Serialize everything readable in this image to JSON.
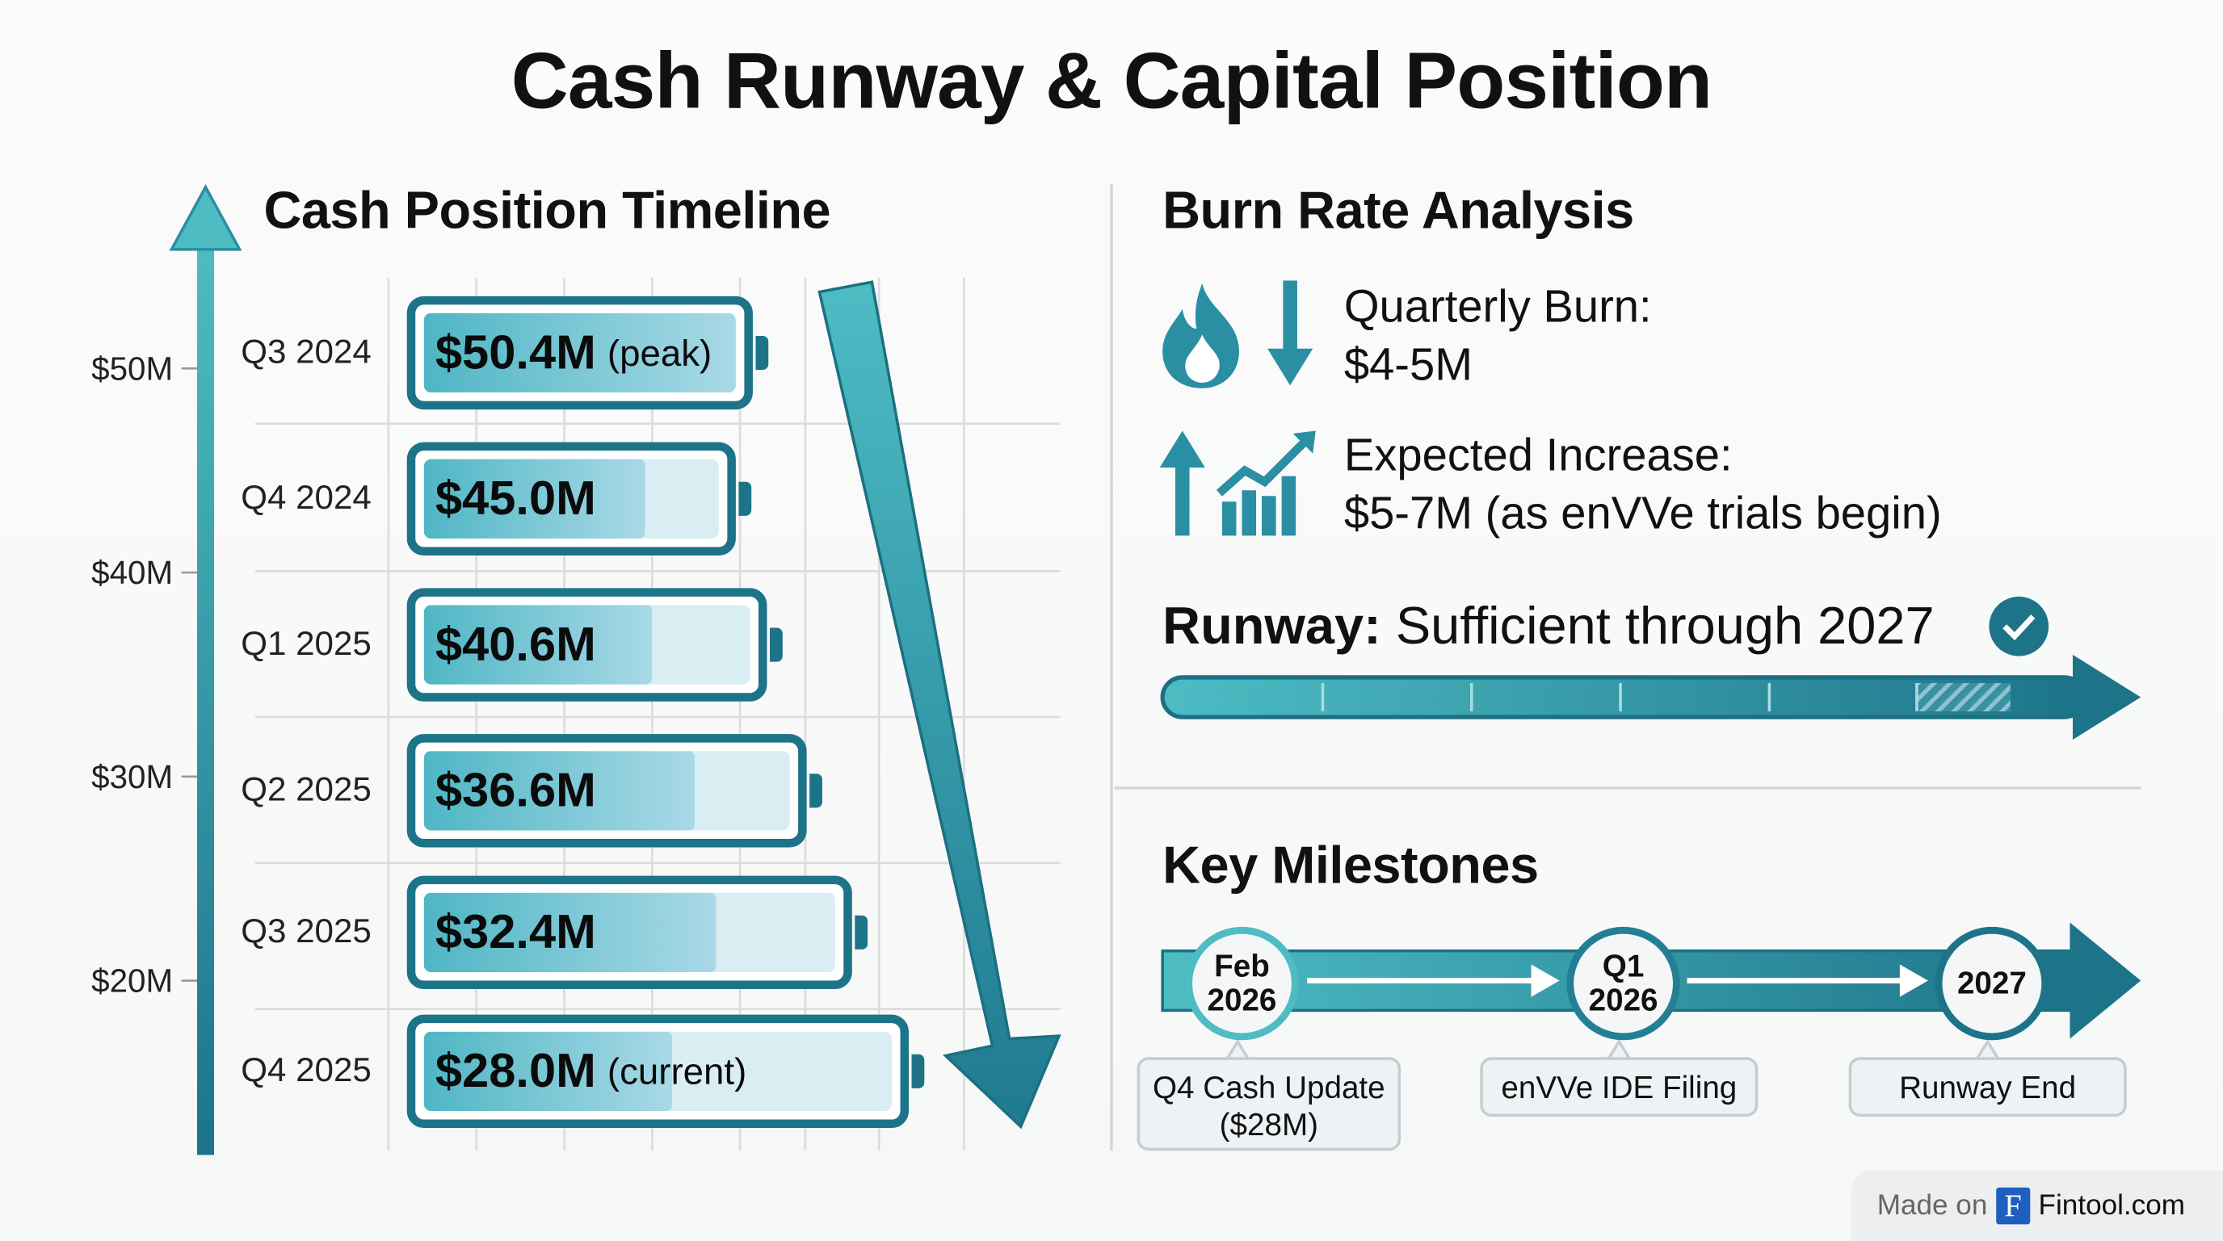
{
  "title": "Cash Runway & Capital Position",
  "colors": {
    "teal_light": "#4fb6c4",
    "teal_dark": "#1d7489",
    "text": "#111111"
  },
  "chart_data": {
    "type": "bar",
    "title": "Cash Position Timeline",
    "orientation": "horizontal",
    "y_ticks": [
      "$50M",
      "$40M",
      "$30M",
      "$20M"
    ],
    "grid": true,
    "categories": [
      "Q3 2024",
      "Q4 2024",
      "Q1 2025",
      "Q2 2025",
      "Q3 2025",
      "Q4 2025"
    ],
    "values": [
      50.4,
      45.0,
      40.6,
      36.6,
      32.4,
      28.0
    ],
    "labels": [
      "$50.4M",
      "$45.0M",
      "$40.6M",
      "$36.6M",
      "$32.4M",
      "$28.0M"
    ],
    "notes": [
      "(peak)",
      "",
      "",
      "",
      "",
      "(current)"
    ],
    "battery_fill_percent": [
      100,
      75,
      70,
      74,
      71,
      53
    ],
    "unit": "USD millions"
  },
  "burn": {
    "title": "Burn Rate Analysis",
    "quarterly_label": "Quarterly Burn:",
    "quarterly_value": "$4-5M",
    "increase_label": "Expected Increase:",
    "increase_value": "$5-7M (as enVVe trials begin)",
    "runway_label": "Runway:",
    "runway_value": "Sufficient through 2027",
    "icons": [
      "flame-icon",
      "arrow-down-icon",
      "arrow-up-icon",
      "growth-chart-icon",
      "check-circle-icon"
    ]
  },
  "milestones": {
    "title": "Key Milestones",
    "items": [
      {
        "date_line1": "Feb",
        "date_line2": "2026",
        "label_line1": "Q4 Cash Update",
        "label_line2": "($28M)"
      },
      {
        "date_line1": "Q1",
        "date_line2": "2026",
        "label_line1": "enVVe IDE Filing",
        "label_line2": ""
      },
      {
        "date_line1": "2027",
        "date_line2": "",
        "label_line1": "Runway End",
        "label_line2": ""
      }
    ]
  },
  "watermark": {
    "prefix": "Made on",
    "logo_letter": "F",
    "brand": "Fintool.com"
  }
}
